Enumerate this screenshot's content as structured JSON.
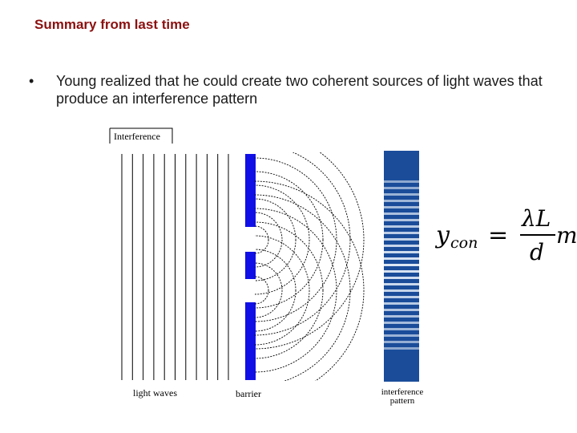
{
  "slide": {
    "title": "Summary from last time",
    "bullet": {
      "symbol": "•",
      "text": "Young realized that he could create two coherent sources of light waves that produce an interference pattern"
    }
  },
  "figure": {
    "label": "Interference",
    "captions": {
      "light_waves": "light waves",
      "barrier": "barrier",
      "pattern_line1": "interference",
      "pattern_line2": "pattern"
    },
    "colors": {
      "barrier": "#1010e6",
      "pattern_dark": "#1a4c9a",
      "pattern_light": "#dce6f4"
    }
  },
  "equation": {
    "lhs_var": "y",
    "lhs_sub": "con",
    "equals": "=",
    "numerator": "λL",
    "denominator": "d",
    "multiplier": "m"
  }
}
